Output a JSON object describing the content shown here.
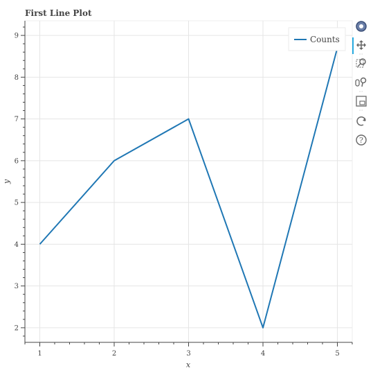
{
  "chart_data": {
    "type": "line",
    "title": "First Line Plot",
    "xlabel": "x",
    "ylabel": "y",
    "x": [
      1,
      2,
      3,
      4,
      5
    ],
    "series": [
      {
        "name": "Counts",
        "values": [
          4,
          6,
          7,
          2,
          8.7
        ],
        "color": "#1f77b4"
      }
    ],
    "xlim": [
      0.8,
      5.2
    ],
    "ylim": [
      1.65,
      9.35
    ],
    "xticks": [
      1,
      2,
      3,
      4,
      5
    ],
    "yticks": [
      2,
      3,
      4,
      5,
      6,
      7,
      8,
      9
    ],
    "grid": true,
    "legend_position": "top-right"
  },
  "toolbar": {
    "logo_icon": "bokeh-logo-icon",
    "tools": [
      {
        "name": "pan-tool-icon",
        "glyph": "✥"
      },
      {
        "name": "box-zoom-tool-icon",
        "glyph": "⬚"
      },
      {
        "name": "wheel-zoom-tool-icon",
        "glyph": "⚲"
      },
      {
        "name": "save-tool-icon",
        "glyph": "🖫"
      },
      {
        "name": "reset-tool-icon",
        "glyph": "⟳"
      },
      {
        "name": "help-tool-icon",
        "glyph": "?"
      }
    ]
  },
  "colors": {
    "grid": "#e5e5e5",
    "axis": "#444444",
    "line": "#1f77b4",
    "toolbar_active": "#26aae1"
  }
}
